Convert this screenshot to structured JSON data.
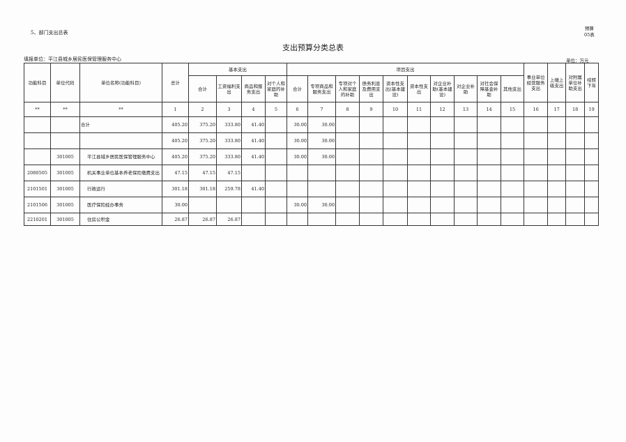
{
  "section": "5、部门支出总表",
  "form_code": [
    "预算",
    "05表"
  ],
  "title": "支出预算分类总表",
  "org": "填报单位：平江县城乡居民医保管理服务中心",
  "unit": "单位：万元",
  "header": {
    "func_subject": "功能科目",
    "unit_code": "单位代码",
    "unit_name": "单位名称(功能科目)",
    "total": "总计",
    "basic": "基本支出",
    "basic_cols": [
      "合计",
      "工资福利支出",
      "商品和服务支出",
      "对个人和家庭的补助"
    ],
    "project": "项目支出",
    "project_cols": [
      "合计",
      "专项商品和服务支出",
      "专项对个人和家庭的补助",
      "债务利息及费用支出",
      "资本性支出(基本建设)",
      "资本性支出",
      "对企业补助(基本建设)",
      "对企业补助",
      "对社会保障基金补助",
      "其他支出"
    ],
    "tail_cols": [
      "事业单位经营服务支出",
      "上缴上级支出",
      "对附属单位补助支出",
      "结转下年"
    ],
    "index_row": [
      "**",
      "**",
      "**",
      "1",
      "2",
      "3",
      "4",
      "5",
      "6",
      "7",
      "8",
      "9",
      "10",
      "11",
      "12",
      "13",
      "14",
      "15",
      "16",
      "17",
      "18",
      "19"
    ]
  },
  "rows": [
    [
      "",
      "",
      "合计",
      "405.20",
      "375.20",
      "333.80",
      "41.40",
      "",
      "30.00",
      "30.00",
      "",
      "",
      "",
      "",
      "",
      "",
      "",
      "",
      "",
      "",
      "",
      ""
    ],
    [
      "",
      "",
      "",
      "405.20",
      "375.20",
      "333.80",
      "41.40",
      "",
      "30.00",
      "30.00",
      "",
      "",
      "",
      "",
      "",
      "",
      "",
      "",
      "",
      "",
      "",
      ""
    ],
    [
      "",
      "301005",
      "平江县城乡居民医保管理服务中心",
      "405.20",
      "375.20",
      "333.80",
      "41.40",
      "",
      "30.00",
      "30.00",
      "",
      "",
      "",
      "",
      "",
      "",
      "",
      "",
      "",
      "",
      "",
      ""
    ],
    [
      "2080505",
      "301005",
      "机关事业单位基本养老保险缴费支出",
      "47.15",
      "47.15",
      "47.15",
      "",
      "",
      "",
      "",
      "",
      "",
      "",
      "",
      "",
      "",
      "",
      "",
      "",
      "",
      "",
      ""
    ],
    [
      "2101501",
      "301005",
      "行政运行",
      "301.18",
      "301.18",
      "259.78",
      "41.40",
      "",
      "",
      "",
      "",
      "",
      "",
      "",
      "",
      "",
      "",
      "",
      "",
      "",
      "",
      ""
    ],
    [
      "2101506",
      "301005",
      "医疗保险经办事务",
      "30.00",
      "",
      "",
      "",
      "",
      "30.00",
      "30.00",
      "",
      "",
      "",
      "",
      "",
      "",
      "",
      "",
      "",
      "",
      "",
      ""
    ],
    [
      "2210201",
      "301005",
      "住房公积金",
      "26.87",
      "26.87",
      "26.87",
      "",
      "",
      "",
      "",
      "",
      "",
      "",
      "",
      "",
      "",
      "",
      "",
      "",
      "",
      "",
      ""
    ]
  ]
}
